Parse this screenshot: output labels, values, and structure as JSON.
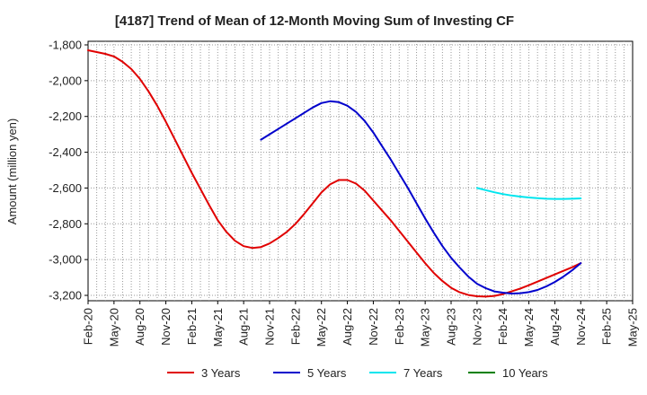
{
  "chart_data": {
    "type": "line",
    "title": "[4187]  Trend of Mean of 12-Month Moving Sum of Investing CF",
    "xlabel": "",
    "ylabel": "Amount (million yen)",
    "ylim": [
      -3230,
      -1780
    ],
    "yticks": [
      -1800,
      -2000,
      -2200,
      -2400,
      -2600,
      -2800,
      -3000,
      -3200
    ],
    "ytick_labels": [
      "-1,800",
      "-2,000",
      "-2,200",
      "-2,400",
      "-2,600",
      "-2,800",
      "-3,000",
      "-3,200"
    ],
    "x_range_months": [
      0,
      63
    ],
    "x_ticks": [
      {
        "label": "Feb-20",
        "m": 0
      },
      {
        "label": "May-20",
        "m": 3
      },
      {
        "label": "Aug-20",
        "m": 6
      },
      {
        "label": "Nov-20",
        "m": 9
      },
      {
        "label": "Feb-21",
        "m": 12
      },
      {
        "label": "May-21",
        "m": 15
      },
      {
        "label": "Aug-21",
        "m": 18
      },
      {
        "label": "Nov-21",
        "m": 21
      },
      {
        "label": "Feb-22",
        "m": 24
      },
      {
        "label": "May-22",
        "m": 27
      },
      {
        "label": "Aug-22",
        "m": 30
      },
      {
        "label": "Nov-22",
        "m": 33
      },
      {
        "label": "Feb-23",
        "m": 36
      },
      {
        "label": "May-23",
        "m": 39
      },
      {
        "label": "Aug-23",
        "m": 42
      },
      {
        "label": "Nov-23",
        "m": 45
      },
      {
        "label": "Feb-24",
        "m": 48
      },
      {
        "label": "May-24",
        "m": 51
      },
      {
        "label": "Aug-24",
        "m": 54
      },
      {
        "label": "Nov-24",
        "m": 57
      },
      {
        "label": "Feb-25",
        "m": 60
      },
      {
        "label": "May-25",
        "m": 63
      }
    ],
    "series": [
      {
        "name": "3 Years",
        "color": "#e00000",
        "points": [
          [
            0,
            -1830
          ],
          [
            1,
            -1840
          ],
          [
            2,
            -1850
          ],
          [
            3,
            -1865
          ],
          [
            4,
            -1895
          ],
          [
            5,
            -1935
          ],
          [
            6,
            -1990
          ],
          [
            7,
            -2060
          ],
          [
            8,
            -2140
          ],
          [
            9,
            -2230
          ],
          [
            10,
            -2325
          ],
          [
            11,
            -2420
          ],
          [
            12,
            -2515
          ],
          [
            13,
            -2605
          ],
          [
            14,
            -2695
          ],
          [
            15,
            -2780
          ],
          [
            16,
            -2845
          ],
          [
            17,
            -2895
          ],
          [
            18,
            -2925
          ],
          [
            19,
            -2935
          ],
          [
            20,
            -2930
          ],
          [
            21,
            -2910
          ],
          [
            22,
            -2880
          ],
          [
            23,
            -2845
          ],
          [
            24,
            -2800
          ],
          [
            25,
            -2745
          ],
          [
            26,
            -2685
          ],
          [
            27,
            -2625
          ],
          [
            28,
            -2580
          ],
          [
            29,
            -2555
          ],
          [
            30,
            -2555
          ],
          [
            31,
            -2575
          ],
          [
            32,
            -2615
          ],
          [
            33,
            -2670
          ],
          [
            34,
            -2725
          ],
          [
            35,
            -2780
          ],
          [
            36,
            -2840
          ],
          [
            37,
            -2900
          ],
          [
            38,
            -2960
          ],
          [
            39,
            -3020
          ],
          [
            40,
            -3075
          ],
          [
            41,
            -3120
          ],
          [
            42,
            -3158
          ],
          [
            43,
            -3183
          ],
          [
            44,
            -3198
          ],
          [
            45,
            -3205
          ],
          [
            46,
            -3207
          ],
          [
            47,
            -3203
          ],
          [
            48,
            -3193
          ],
          [
            49,
            -3178
          ],
          [
            50,
            -3162
          ],
          [
            51,
            -3143
          ],
          [
            52,
            -3123
          ],
          [
            53,
            -3103
          ],
          [
            54,
            -3083
          ],
          [
            55,
            -3063
          ],
          [
            56,
            -3043
          ],
          [
            57,
            -3020
          ]
        ]
      },
      {
        "name": "5 Years",
        "color": "#0000cc",
        "points": [
          [
            20,
            -2330
          ],
          [
            21,
            -2300
          ],
          [
            22,
            -2270
          ],
          [
            23,
            -2240
          ],
          [
            24,
            -2210
          ],
          [
            25,
            -2180
          ],
          [
            26,
            -2150
          ],
          [
            27,
            -2125
          ],
          [
            28,
            -2115
          ],
          [
            29,
            -2120
          ],
          [
            30,
            -2140
          ],
          [
            31,
            -2175
          ],
          [
            32,
            -2225
          ],
          [
            33,
            -2290
          ],
          [
            34,
            -2365
          ],
          [
            35,
            -2440
          ],
          [
            36,
            -2520
          ],
          [
            37,
            -2600
          ],
          [
            38,
            -2685
          ],
          [
            39,
            -2770
          ],
          [
            40,
            -2850
          ],
          [
            41,
            -2925
          ],
          [
            42,
            -2990
          ],
          [
            43,
            -3045
          ],
          [
            44,
            -3095
          ],
          [
            45,
            -3135
          ],
          [
            46,
            -3160
          ],
          [
            47,
            -3178
          ],
          [
            48,
            -3185
          ],
          [
            49,
            -3190
          ],
          [
            50,
            -3188
          ],
          [
            51,
            -3182
          ],
          [
            52,
            -3170
          ],
          [
            53,
            -3150
          ],
          [
            54,
            -3125
          ],
          [
            55,
            -3095
          ],
          [
            56,
            -3060
          ],
          [
            57,
            -3020
          ]
        ]
      },
      {
        "name": "7 Years",
        "color": "#00e5ee",
        "points": [
          [
            45,
            -2600
          ],
          [
            46,
            -2612
          ],
          [
            47,
            -2624
          ],
          [
            48,
            -2634
          ],
          [
            49,
            -2642
          ],
          [
            50,
            -2648
          ],
          [
            51,
            -2653
          ],
          [
            52,
            -2657
          ],
          [
            53,
            -2660
          ],
          [
            54,
            -2661
          ],
          [
            55,
            -2661
          ],
          [
            56,
            -2660
          ],
          [
            57,
            -2658
          ]
        ]
      },
      {
        "name": "10 Years",
        "color": "#008000",
        "points": []
      }
    ]
  }
}
